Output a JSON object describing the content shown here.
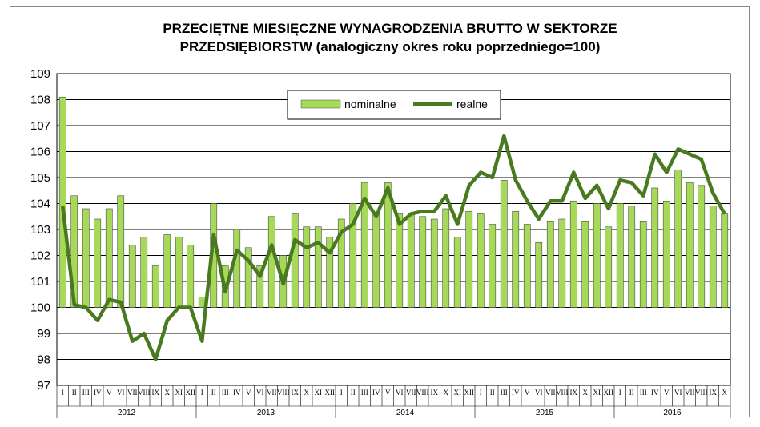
{
  "chart_data": {
    "type": "bar",
    "title": [
      "PRZECIĘTNE MIESIĘCZNE WYNAGRODZENIA BRUTTO W SEKTORZE",
      "PRZEDSIĘBIORSTW (analogiczny okres roku poprzedniego=100)"
    ],
    "ylim": [
      97,
      109
    ],
    "yticks": [
      97,
      98,
      99,
      100,
      101,
      102,
      103,
      104,
      105,
      106,
      107,
      108,
      109
    ],
    "grid": true,
    "legend_position": "top-center",
    "years": [
      {
        "label": "2012",
        "months": 12
      },
      {
        "label": "2013",
        "months": 12
      },
      {
        "label": "2014",
        "months": 12
      },
      {
        "label": "2015",
        "months": 12
      },
      {
        "label": "2016",
        "months": 10
      }
    ],
    "month_labels": [
      "I",
      "II",
      "III",
      "IV",
      "V",
      "VI",
      "VII",
      "VIII",
      "IX",
      "X",
      "XI",
      "XII"
    ],
    "series": [
      {
        "name": "nominalne",
        "kind": "bar",
        "color": "#a6d957",
        "values": [
          108.1,
          104.3,
          103.8,
          103.4,
          103.8,
          104.3,
          102.4,
          102.7,
          101.6,
          102.8,
          102.7,
          102.4,
          100.4,
          104.0,
          101.6,
          103.0,
          102.3,
          101.6,
          103.5,
          102.0,
          103.6,
          103.1,
          103.1,
          102.7,
          103.4,
          104.0,
          104.8,
          103.6,
          104.8,
          103.6,
          103.6,
          103.5,
          103.4,
          103.8,
          102.7,
          103.7,
          103.6,
          103.2,
          104.9,
          103.7,
          103.2,
          102.5,
          103.3,
          103.4,
          104.1,
          103.3,
          104.0,
          103.1,
          104.0,
          103.9,
          103.3,
          104.6,
          104.1,
          105.3,
          104.8,
          104.7,
          103.9,
          103.6
        ]
      },
      {
        "name": "realne",
        "kind": "line",
        "color": "#4a7a1f",
        "values": [
          103.9,
          100.1,
          100.0,
          99.5,
          100.3,
          100.2,
          98.7,
          99.0,
          98.0,
          99.5,
          100.0,
          100.0,
          98.7,
          102.8,
          100.6,
          102.2,
          101.8,
          101.2,
          102.4,
          100.9,
          102.6,
          102.3,
          102.5,
          102.1,
          102.9,
          103.2,
          104.2,
          103.5,
          104.6,
          103.2,
          103.6,
          103.7,
          103.7,
          104.3,
          103.2,
          104.7,
          105.2,
          105.0,
          106.6,
          104.9,
          104.1,
          103.4,
          104.1,
          104.1,
          105.2,
          104.2,
          104.7,
          103.8,
          104.9,
          104.8,
          104.3,
          105.9,
          105.2,
          106.1,
          105.9,
          105.7,
          104.4,
          103.6
        ]
      }
    ]
  }
}
